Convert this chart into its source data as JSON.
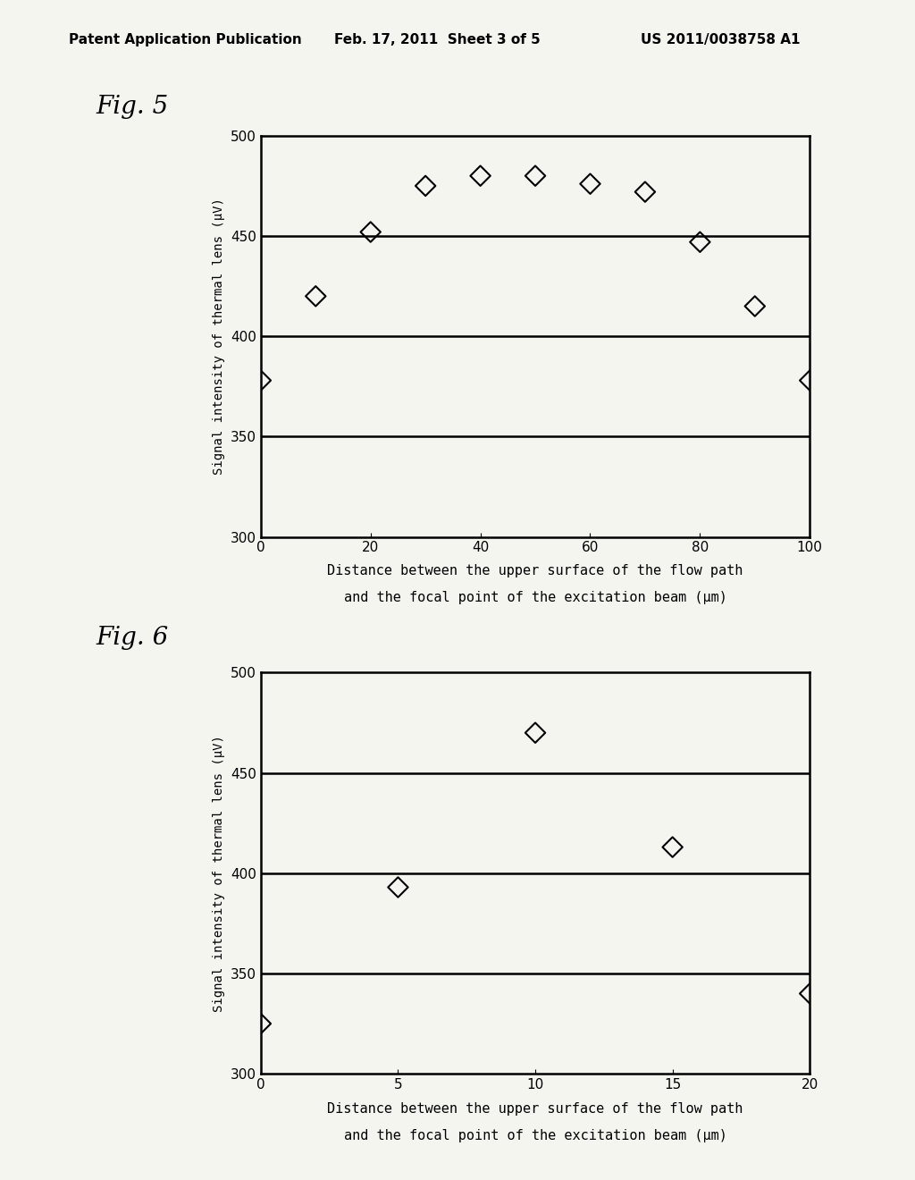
{
  "fig5": {
    "title": "Fig. 5",
    "x": [
      0,
      10,
      20,
      30,
      40,
      50,
      60,
      70,
      80,
      90,
      100
    ],
    "y": [
      378,
      420,
      452,
      475,
      480,
      480,
      476,
      472,
      447,
      415,
      378
    ],
    "xlim": [
      0,
      100
    ],
    "ylim": [
      300,
      500
    ],
    "xticks": [
      0,
      20,
      40,
      60,
      80,
      100
    ],
    "yticks": [
      300,
      350,
      400,
      450,
      500
    ],
    "xlabel_line1": "Distance between the upper surface of the flow path",
    "xlabel_line2": "and the focal point of the excitation beam (μm)",
    "ylabel": "Signal intensity of thermal lens (μV)"
  },
  "fig6": {
    "title": "Fig. 6",
    "x": [
      0,
      5,
      10,
      15,
      20
    ],
    "y": [
      325,
      393,
      470,
      413,
      340
    ],
    "xlim": [
      0,
      20
    ],
    "ylim": [
      300,
      500
    ],
    "xticks": [
      0,
      5,
      10,
      15,
      20
    ],
    "yticks": [
      300,
      350,
      400,
      450,
      500
    ],
    "xlabel_line1": "Distance between the upper surface of the flow path",
    "xlabel_line2": "and the focal point of the excitation beam (μm)",
    "ylabel": "Signal intensity of thermal lens (μV)"
  },
  "header_left": "Patent Application Publication",
  "header_mid": "Feb. 17, 2011  Sheet 3 of 5",
  "header_right": "US 2011/0038758 A1",
  "bg_color": "#f5f5f0",
  "marker_color": "#000000",
  "hline_color": "#000000",
  "hline_lw": 1.8,
  "spine_lw": 1.8,
  "marker_size": 130,
  "marker_lw": 1.5,
  "ylabel_fontsize": 10,
  "xlabel_fontsize": 11,
  "tick_fontsize": 11,
  "header_fontsize": 11,
  "title_fontsize": 20
}
